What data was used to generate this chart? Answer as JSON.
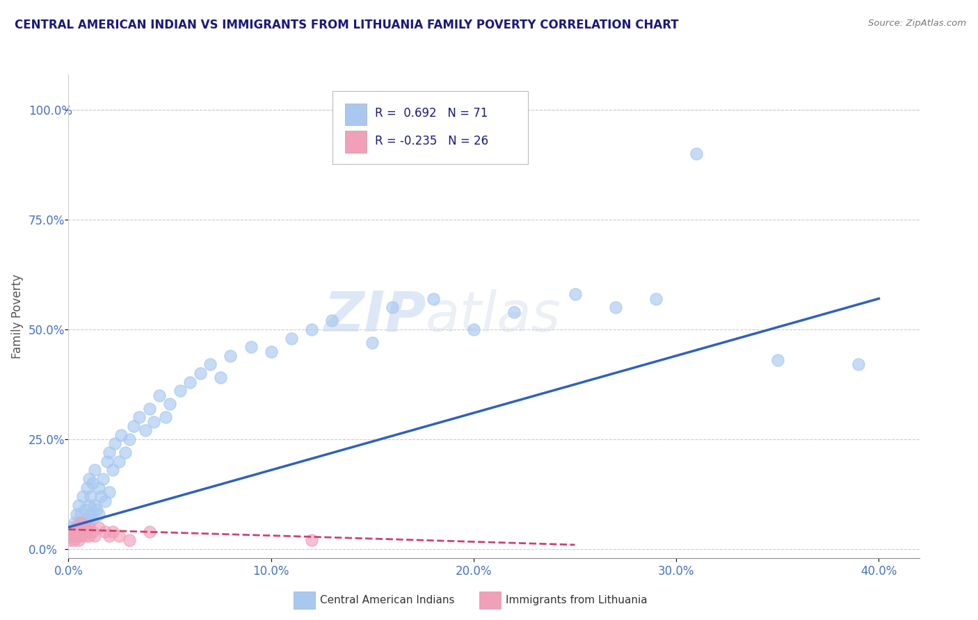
{
  "title": "CENTRAL AMERICAN INDIAN VS IMMIGRANTS FROM LITHUANIA FAMILY POVERTY CORRELATION CHART",
  "source": "Source: ZipAtlas.com",
  "xlabel_ticks": [
    "0.0%",
    "10.0%",
    "20.0%",
    "30.0%",
    "40.0%"
  ],
  "ylabel_ticks": [
    "0.0%",
    "25.0%",
    "50.0%",
    "75.0%",
    "100.0%"
  ],
  "xlim": [
    0.0,
    0.42
  ],
  "ylim": [
    -0.02,
    1.08
  ],
  "legend1_text": "R =  0.692   N = 71",
  "legend2_text": "R = -0.235   N = 26",
  "legend_bottom_label1": "Central American Indians",
  "legend_bottom_label2": "Immigrants from Lithuania",
  "blue_color": "#a8c8f0",
  "pink_color": "#f0a0b8",
  "blue_line_color": "#3060c0",
  "pink_line_color": "#d04070",
  "watermark_zip": "ZIP",
  "watermark_atlas": "atlas",
  "title_color": "#1a1a7a",
  "tick_color": "#4472c4",
  "ylabel_color": "#555555",
  "blue_scatter_x": [
    0.001,
    0.002,
    0.003,
    0.003,
    0.004,
    0.004,
    0.005,
    0.005,
    0.005,
    0.006,
    0.006,
    0.007,
    0.007,
    0.008,
    0.008,
    0.009,
    0.009,
    0.01,
    0.01,
    0.01,
    0.011,
    0.011,
    0.012,
    0.012,
    0.013,
    0.013,
    0.014,
    0.015,
    0.015,
    0.016,
    0.017,
    0.018,
    0.019,
    0.02,
    0.02,
    0.022,
    0.023,
    0.025,
    0.026,
    0.028,
    0.03,
    0.032,
    0.035,
    0.038,
    0.04,
    0.042,
    0.045,
    0.048,
    0.05,
    0.055,
    0.06,
    0.065,
    0.07,
    0.075,
    0.08,
    0.09,
    0.1,
    0.11,
    0.12,
    0.13,
    0.15,
    0.16,
    0.18,
    0.2,
    0.22,
    0.25,
    0.27,
    0.29,
    0.31,
    0.35,
    0.39
  ],
  "blue_scatter_y": [
    0.05,
    0.03,
    0.04,
    0.06,
    0.04,
    0.08,
    0.03,
    0.06,
    0.1,
    0.05,
    0.08,
    0.06,
    0.12,
    0.05,
    0.09,
    0.07,
    0.14,
    0.06,
    0.1,
    0.16,
    0.08,
    0.12,
    0.07,
    0.15,
    0.1,
    0.18,
    0.09,
    0.08,
    0.14,
    0.12,
    0.16,
    0.11,
    0.2,
    0.13,
    0.22,
    0.18,
    0.24,
    0.2,
    0.26,
    0.22,
    0.25,
    0.28,
    0.3,
    0.27,
    0.32,
    0.29,
    0.35,
    0.3,
    0.33,
    0.36,
    0.38,
    0.4,
    0.42,
    0.39,
    0.44,
    0.46,
    0.45,
    0.48,
    0.5,
    0.52,
    0.47,
    0.55,
    0.57,
    0.5,
    0.54,
    0.58,
    0.55,
    0.57,
    0.9,
    0.43,
    0.42
  ],
  "pink_scatter_x": [
    0.001,
    0.002,
    0.003,
    0.003,
    0.004,
    0.004,
    0.005,
    0.005,
    0.006,
    0.006,
    0.007,
    0.008,
    0.008,
    0.009,
    0.01,
    0.01,
    0.012,
    0.013,
    0.015,
    0.018,
    0.02,
    0.022,
    0.025,
    0.03,
    0.04,
    0.12
  ],
  "pink_scatter_y": [
    0.02,
    0.03,
    0.02,
    0.04,
    0.03,
    0.05,
    0.02,
    0.04,
    0.03,
    0.06,
    0.04,
    0.03,
    0.05,
    0.04,
    0.03,
    0.05,
    0.04,
    0.03,
    0.05,
    0.04,
    0.03,
    0.04,
    0.03,
    0.02,
    0.04,
    0.02
  ],
  "blue_line_x0": 0.0,
  "blue_line_y0": 0.05,
  "blue_line_x1": 0.4,
  "blue_line_y1": 0.57,
  "pink_line_x0": 0.0,
  "pink_line_y0": 0.045,
  "pink_line_x1": 0.25,
  "pink_line_y1": 0.01
}
